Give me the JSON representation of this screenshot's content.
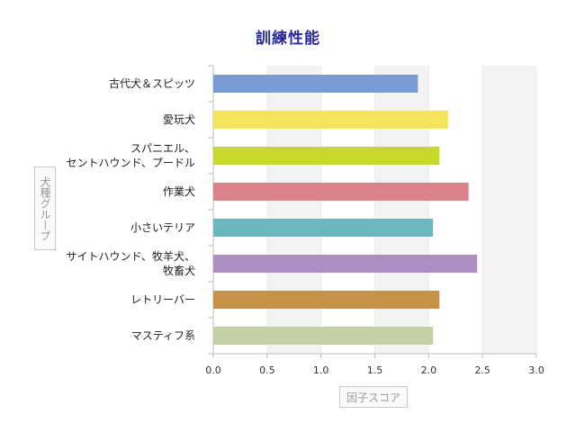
{
  "chart_data": {
    "type": "bar",
    "orientation": "horizontal",
    "title": "訓練性能",
    "xlabel": "因子スコア",
    "ylabel": "犬種グループ",
    "xlim": [
      0,
      3
    ],
    "xticks": [
      "0.0",
      "0.5",
      "1.0",
      "1.5",
      "2.0",
      "2.5",
      "3.0"
    ],
    "categories": [
      [
        "古代犬＆スピッツ"
      ],
      [
        "愛玩犬"
      ],
      [
        "スパニエル、",
        "セントハウンド、プードル"
      ],
      [
        "作業犬"
      ],
      [
        "小さいテリア"
      ],
      [
        "サイトハウンド、牧羊犬、",
        "牧畜犬"
      ],
      [
        "レトリーバー"
      ],
      [
        "マスティフ系"
      ]
    ],
    "values": [
      1.9,
      2.18,
      2.1,
      2.37,
      2.04,
      2.45,
      2.1,
      2.04
    ],
    "colors": [
      "#7b9bd4",
      "#f5e35c",
      "#c8d82a",
      "#d9828a",
      "#6ab8be",
      "#ad8ec2",
      "#c6924a",
      "#c5d0a6"
    ],
    "grid": true
  }
}
